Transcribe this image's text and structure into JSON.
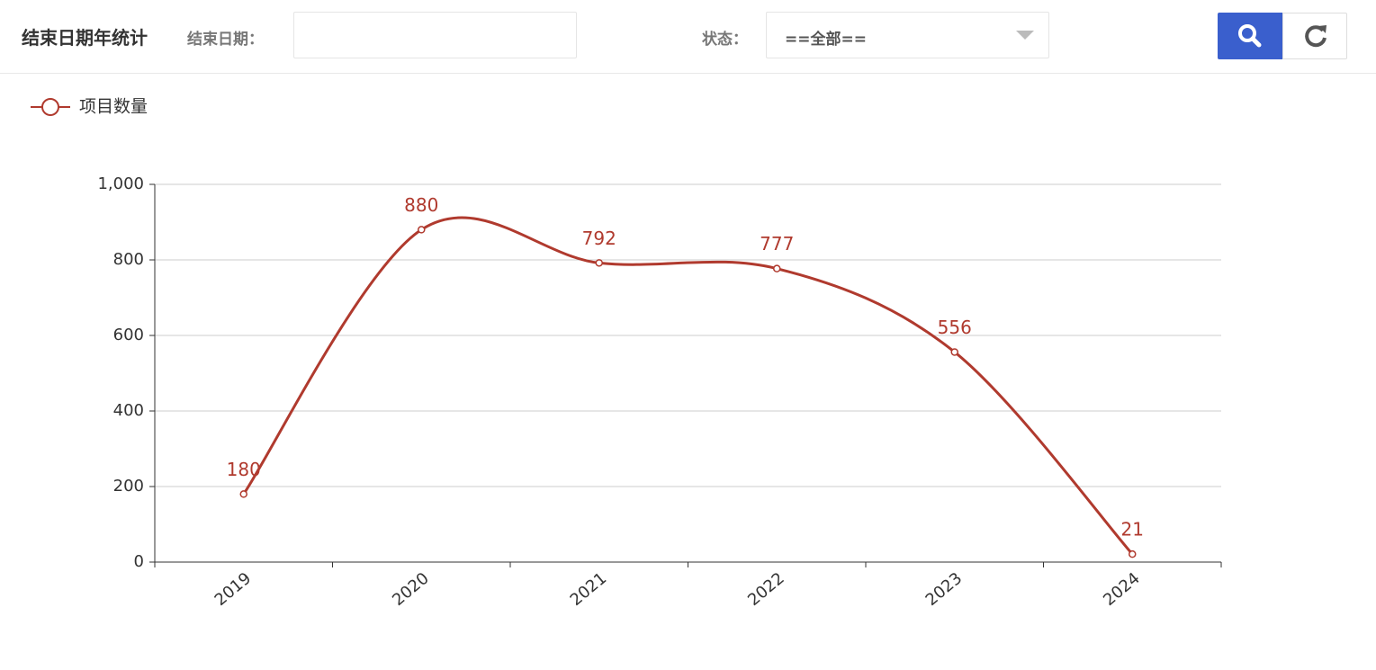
{
  "header": {
    "title": "结束日期年统计",
    "date_label": "结束日期：",
    "status_label": "状态：",
    "status_value": "==全部=="
  },
  "chart_data": {
    "type": "line",
    "categories": [
      "2019",
      "2020",
      "2021",
      "2022",
      "2023",
      "2024"
    ],
    "series": [
      {
        "name": "项目数量",
        "color": "#b03a2e",
        "values": [
          180,
          880,
          792,
          777,
          556,
          21
        ]
      }
    ],
    "ylim": [
      0,
      1000
    ],
    "yticks": [
      0,
      200,
      400,
      600,
      800,
      {
        "value": 1000,
        "label": "1,000"
      }
    ],
    "grid": true,
    "smooth": true,
    "legend": "top-left"
  }
}
